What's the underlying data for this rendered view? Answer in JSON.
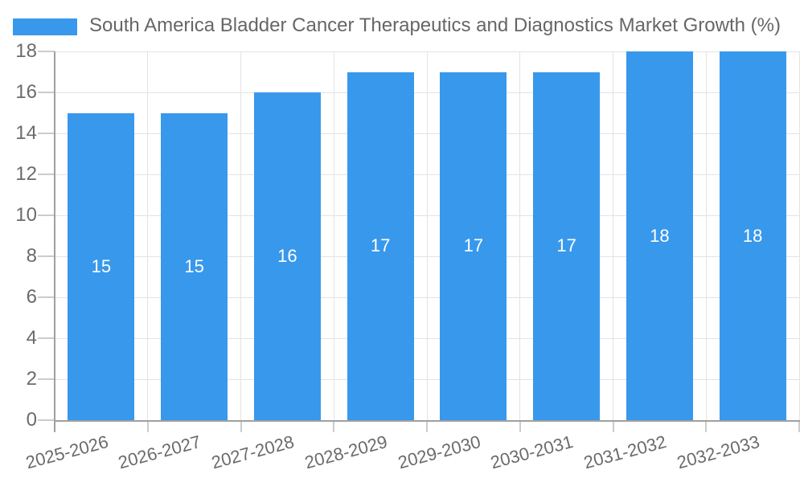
{
  "legend": {
    "series_label": "South America Bladder Cancer Therapeutics and Diagnostics Market Growth (%)"
  },
  "colors": {
    "bar": "#3898ec",
    "bar_value_text": "#ffffff",
    "axis_line": "#a0a0a0",
    "gridline": "#e3e3e3",
    "tick_mark": "#cccccc",
    "tick_text": "#6b6b6b",
    "title_text": "#666666",
    "background": "#ffffff"
  },
  "chart_data": {
    "type": "bar",
    "title": "South America Bladder Cancer Therapeutics and Diagnostics Market Growth (%)",
    "categories": [
      "2025-2026",
      "2026-2027",
      "2027-2028",
      "2028-2029",
      "2029-2030",
      "2030-2031",
      "2031-2032",
      "2032-2033"
    ],
    "values": [
      15,
      15,
      16,
      17,
      17,
      17,
      18,
      18
    ],
    "data_labels": [
      "15",
      "15",
      "16",
      "17",
      "17",
      "17",
      "18",
      "18"
    ],
    "y_tick_labels": [
      "0",
      "2",
      "4",
      "6",
      "8",
      "10",
      "12",
      "14",
      "16",
      "18"
    ],
    "xlabel": "",
    "ylabel": "",
    "ylim": [
      0,
      18
    ],
    "ytick_step": 2,
    "grid": true,
    "legend_position": "top-left",
    "bar_color": "#3898ec",
    "value_label_position": "center-inside"
  }
}
